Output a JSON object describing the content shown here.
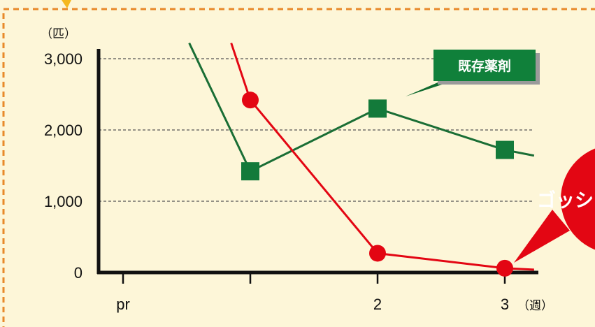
{
  "colors": {
    "background": "#fdf6d8",
    "frame": "#e8892a",
    "existing": "#1a6e35",
    "existing_marker": "#137a3a",
    "gosshi": "#e30613",
    "gridline": "#555555"
  },
  "chart_data": {
    "type": "line",
    "ylabel_unit": "（匹）",
    "xlabel_unit": "（週）",
    "ylim": [
      0,
      3000
    ],
    "yticks": [
      {
        "value": 0,
        "label": "0"
      },
      {
        "value": 1000,
        "label": "1,000"
      },
      {
        "value": 2000,
        "label": "2,000"
      },
      {
        "value": 3000,
        "label": "3,000"
      }
    ],
    "xticks": [
      {
        "x": 0,
        "label": "pr"
      },
      {
        "x": 1,
        "label": ""
      },
      {
        "x": 2,
        "label": "2"
      },
      {
        "x": 3,
        "label": "3"
      }
    ],
    "grid": "dashed-horizontal",
    "series": [
      {
        "name": "既存薬剤",
        "color": "#1a6e35",
        "marker": "square",
        "x": [
          0.52,
          1,
          2,
          3,
          3.23
        ],
        "y": [
          3220,
          1420,
          2300,
          1720,
          1640
        ],
        "markers": [
          false,
          true,
          true,
          true,
          false
        ]
      },
      {
        "name": "ゴッシ",
        "color": "#e30613",
        "marker": "circle",
        "x": [
          0.85,
          1,
          2,
          3,
          3.23
        ],
        "y": [
          3220,
          2420,
          270,
          60,
          40
        ],
        "markers": [
          false,
          true,
          true,
          true,
          false
        ]
      }
    ]
  },
  "callouts": {
    "existing_label": "既存薬剤",
    "gosshi_label": "ゴッシ"
  }
}
